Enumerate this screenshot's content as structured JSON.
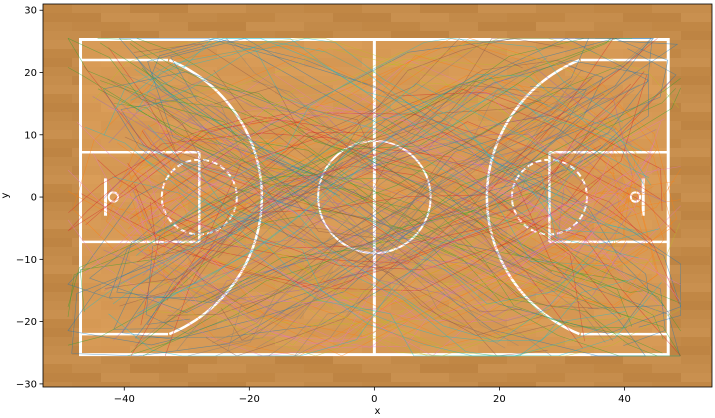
{
  "chart_data": {
    "type": "line",
    "title": "",
    "xlabel": "x",
    "ylabel": "y",
    "xlim": [
      -53,
      54
    ],
    "ylim": [
      -30.5,
      31
    ],
    "xticks": [
      -40,
      -20,
      0,
      20,
      40
    ],
    "yticks": [
      -30,
      -20,
      -10,
      0,
      10,
      20,
      30
    ],
    "xtick_labels": [
      "−40",
      "−20",
      "0",
      "20",
      "40"
    ],
    "ytick_labels": [
      "−30",
      "−20",
      "−10",
      "0",
      "10",
      "20",
      "30"
    ],
    "grid": false,
    "legend": "none",
    "background": "basketball-court",
    "court": {
      "sideline_x": [
        -47,
        47
      ],
      "baseline_y": [
        -25.3,
        25.3
      ],
      "three_point_radius": 23.75,
      "three_point_corner_y": 22,
      "lane_half_width": 7.2,
      "free_throw_distance": 19,
      "free_throw_circle_radius": 6,
      "center_circle_radius": 9,
      "backboard_x": 43,
      "hoop_x": 41.75
    },
    "series": [
      {
        "color": "#1f77b4",
        "x": [
          -10,
          -25,
          -38,
          -42,
          -30,
          -15,
          0,
          15,
          30,
          40,
          44,
          35
        ],
        "y": [
          -2,
          5,
          12,
          20,
          23,
          18,
          10,
          0,
          -8,
          -15,
          -22,
          -23
        ]
      },
      {
        "color": "#ff7f0e",
        "x": [
          5,
          20,
          35,
          42,
          38,
          25,
          10,
          -5,
          -20,
          -35,
          -43
        ],
        "y": [
          3,
          10,
          15,
          8,
          -5,
          -15,
          -20,
          -12,
          -5,
          2,
          5
        ]
      },
      {
        "color": "#2ca02c",
        "x": [
          -45,
          -40,
          -30,
          -20,
          -10,
          0,
          10,
          20,
          30,
          40,
          45
        ],
        "y": [
          -22,
          -18,
          -14,
          -8,
          -3,
          1,
          6,
          11,
          16,
          20,
          23
        ]
      },
      {
        "color": "#d62728",
        "x": [
          40,
          35,
          25,
          12,
          0,
          -12,
          -25,
          -37,
          -43
        ],
        "y": [
          -23,
          -12,
          -3,
          4,
          8,
          11,
          7,
          0,
          -6
        ]
      },
      {
        "color": "#9467bd",
        "x": [
          -36,
          -28,
          -18,
          -8,
          2,
          12,
          22,
          32,
          38
        ],
        "y": [
          15,
          9,
          4,
          -1,
          -6,
          -11,
          -14,
          -10,
          -2
        ]
      },
      {
        "color": "#e377c2",
        "x": [
          -43,
          -38,
          -30,
          -22,
          -12,
          -2,
          8,
          18,
          28,
          37,
          43
        ],
        "y": [
          2,
          -4,
          -10,
          -16,
          -20,
          -17,
          -11,
          -5,
          1,
          7,
          12
        ]
      },
      {
        "color": "#8c564b",
        "x": [
          30,
          22,
          14,
          6,
          -2,
          -10,
          -18,
          -26,
          -34
        ],
        "y": [
          20,
          22,
          18,
          13,
          7,
          2,
          -3,
          -9,
          -14
        ]
      },
      {
        "color": "#7f7f7f",
        "x": [
          -20,
          -15,
          -8,
          0,
          8,
          15,
          22,
          30,
          36
        ],
        "y": [
          -24,
          -20,
          -14,
          -9,
          -4,
          2,
          8,
          14,
          19
        ]
      },
      {
        "color": "#bcbd22",
        "x": [
          42,
          36,
          28,
          20,
          12,
          4,
          -4,
          -12,
          -20,
          -28
        ],
        "y": [
          10,
          14,
          17,
          19,
          20,
          18,
          15,
          11,
          6,
          0
        ]
      },
      {
        "color": "#17becf",
        "x": [
          -42,
          -34,
          -26,
          -18,
          -10,
          -2,
          6,
          14,
          22,
          30,
          38
        ],
        "y": [
          -12,
          -8,
          -2,
          3,
          9,
          14,
          19,
          23,
          21,
          16,
          10
        ]
      }
    ]
  }
}
